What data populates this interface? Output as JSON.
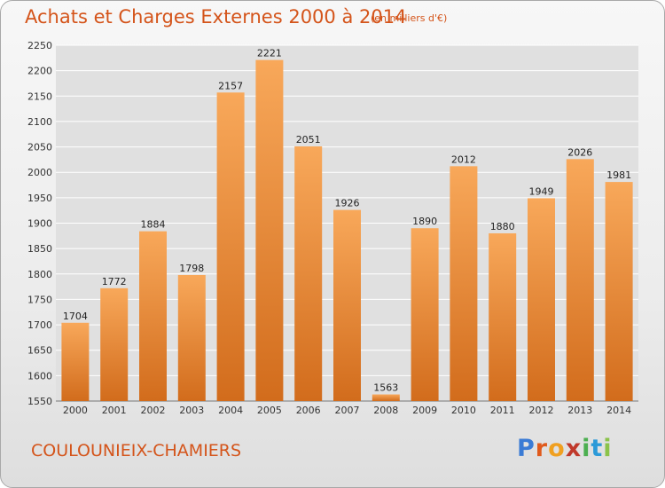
{
  "header": {
    "title": "Achats et Charges Externes 2000 à 2014",
    "subtitle": "(en milliers d'€)"
  },
  "footer": {
    "commune": "COULOUNIEIX-CHAMIERS",
    "brand": "Proxiti",
    "brand_colors": [
      "#3a7bd5",
      "#e05a1c",
      "#f0a020",
      "#c0392b",
      "#4caf50",
      "#2c9ad8",
      "#8bc34a"
    ]
  },
  "colors": {
    "bar_top": "#f8a85a",
    "bar_bottom": "#d26c1c",
    "title": "#d4541a",
    "grid": "#ffffff"
  },
  "chart_data": {
    "type": "bar",
    "title": "Achats et Charges Externes 2000 à 2014",
    "subtitle": "(en milliers d'€)",
    "xlabel": "",
    "ylabel": "",
    "categories": [
      "2000",
      "2001",
      "2002",
      "2003",
      "2004",
      "2005",
      "2006",
      "2007",
      "2008",
      "2009",
      "2010",
      "2011",
      "2012",
      "2013",
      "2014"
    ],
    "values": [
      1704,
      1772,
      1884,
      1798,
      2157,
      2221,
      2051,
      1926,
      1563,
      1890,
      2012,
      1880,
      1949,
      2026,
      1981
    ],
    "ylim": [
      1550,
      2250
    ],
    "yticks": [
      1550,
      1600,
      1650,
      1700,
      1750,
      1800,
      1850,
      1900,
      1950,
      2000,
      2050,
      2100,
      2150,
      2200,
      2250
    ],
    "grid": true,
    "legend": "none"
  }
}
